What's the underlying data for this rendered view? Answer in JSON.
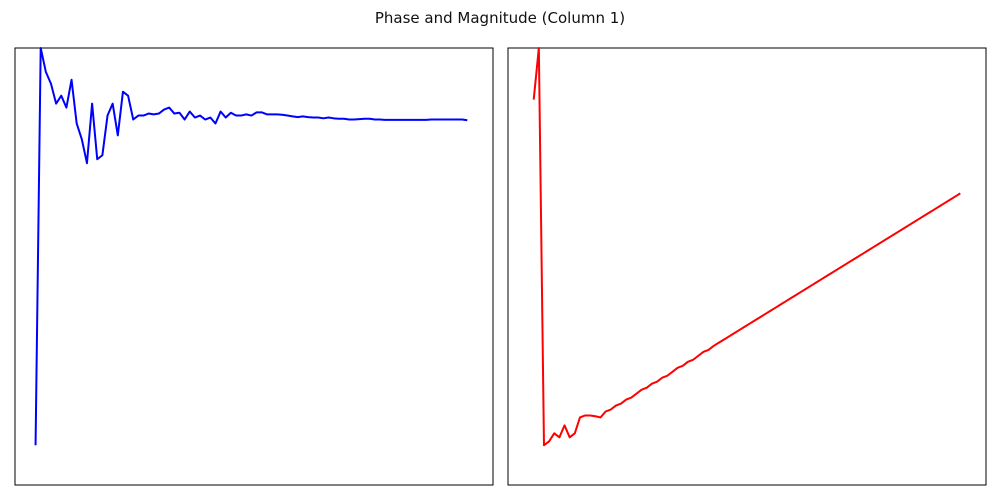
{
  "figure": {
    "title": "Phase and Magnitude (Column 1)"
  },
  "chart_data": [
    {
      "type": "line",
      "color": "#0000ff",
      "grid": false,
      "xlim": [
        -4,
        89
      ],
      "ylim": [
        -0.1,
        1.0
      ],
      "series": [
        {
          "values": [
            0.0,
            1.0,
            0.94,
            0.91,
            0.86,
            0.88,
            0.85,
            0.92,
            0.81,
            0.77,
            0.71,
            0.86,
            0.72,
            0.73,
            0.83,
            0.86,
            0.78,
            0.89,
            0.88,
            0.82,
            0.83,
            0.83,
            0.835,
            0.833,
            0.835,
            0.845,
            0.85,
            0.835,
            0.837,
            0.82,
            0.84,
            0.825,
            0.83,
            0.82,
            0.825,
            0.81,
            0.84,
            0.825,
            0.837,
            0.83,
            0.83,
            0.833,
            0.83,
            0.838,
            0.838,
            0.833,
            0.833,
            0.833,
            0.832,
            0.83,
            0.828,
            0.826,
            0.828,
            0.826,
            0.825,
            0.825,
            0.823,
            0.825,
            0.823,
            0.822,
            0.822,
            0.82,
            0.82,
            0.821,
            0.822,
            0.822,
            0.82,
            0.82,
            0.819,
            0.819,
            0.819,
            0.819,
            0.819,
            0.819,
            0.819,
            0.819,
            0.819,
            0.82,
            0.82,
            0.82,
            0.82,
            0.82,
            0.82,
            0.82,
            0.818
          ]
        }
      ]
    },
    {
      "type": "line",
      "color": "#ff0000",
      "grid": false,
      "xlim": [
        -5,
        88
      ],
      "ylim": [
        -0.1,
        1.0
      ],
      "series": [
        {
          "values": [
            0.87,
            1.0,
            0.0,
            0.01,
            0.03,
            0.02,
            0.05,
            0.02,
            0.03,
            0.07,
            0.075,
            0.075,
            0.073,
            0.07,
            0.085,
            0.09,
            0.1,
            0.105,
            0.115,
            0.12,
            0.13,
            0.14,
            0.145,
            0.155,
            0.16,
            0.17,
            0.175,
            0.185,
            0.195,
            0.2,
            0.21,
            0.215,
            0.225,
            0.235,
            0.24,
            0.25,
            0.258,
            0.266,
            0.274,
            0.282,
            0.29,
            0.298,
            0.306,
            0.314,
            0.322,
            0.33,
            0.338,
            0.346,
            0.354,
            0.362,
            0.37,
            0.378,
            0.386,
            0.394,
            0.402,
            0.41,
            0.418,
            0.426,
            0.434,
            0.442,
            0.45,
            0.458,
            0.466,
            0.474,
            0.482,
            0.49,
            0.498,
            0.506,
            0.514,
            0.522,
            0.53,
            0.538,
            0.546,
            0.554,
            0.562,
            0.57,
            0.578,
            0.586,
            0.594,
            0.602,
            0.61,
            0.618,
            0.626,
            0.634
          ]
        }
      ]
    }
  ]
}
